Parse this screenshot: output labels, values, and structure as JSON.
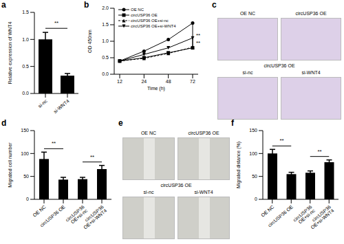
{
  "chart_data": [
    {
      "panel": "a",
      "type": "bar",
      "categories": [
        "si-nc",
        "si-WNT4"
      ],
      "values": [
        1.0,
        0.33
      ],
      "errors": [
        0.13,
        0.04
      ],
      "color": "#000000",
      "ylabel": "Relative expression of WNT4",
      "ylim": [
        0,
        1.5
      ],
      "yticks": [
        {
          "value": 0,
          "label": "0.0"
        },
        {
          "value": 0.5,
          "label": "0.5"
        },
        {
          "value": 1,
          "label": "1.0"
        },
        {
          "value": 1.5,
          "label": "1.5"
        }
      ],
      "annotations": [
        {
          "text": "**",
          "between": [
            "si-nc",
            "si-WNT4"
          ]
        }
      ]
    },
    {
      "panel": "b",
      "type": "line",
      "categories": [
        "12",
        "24",
        "48",
        "72"
      ],
      "xlabel": "Time (h)",
      "ylabel": "OD 450nm",
      "ylim": [
        0,
        2
      ],
      "yticks": [
        {
          "value": 0,
          "label": "0.0"
        },
        {
          "value": 0.5,
          "label": "0.5"
        },
        {
          "value": 1,
          "label": "1.0"
        },
        {
          "value": 1.5,
          "label": "1.5"
        },
        {
          "value": 2,
          "label": "2.0"
        }
      ],
      "legend": "upper left",
      "series": [
        {
          "name": "OE NC",
          "color": "#000000",
          "marker": "circle",
          "line_style": "solid",
          "values": [
            0.4,
            0.7,
            1.05,
            1.55
          ]
        },
        {
          "name": "circUSP36 OE",
          "color": "#000000",
          "marker": "square",
          "line_style": "solid",
          "values": [
            0.4,
            0.5,
            0.65,
            0.8
          ]
        },
        {
          "name": "circUSP36 OE+si-nc",
          "color": "#000000",
          "marker": "triangle",
          "line_style": "dashed",
          "values": [
            0.4,
            0.48,
            0.63,
            0.82
          ]
        },
        {
          "name": "circUSP36 OE+si-WNT4",
          "color": "#000000",
          "marker": "triangle-down",
          "line_style": "solid",
          "values": [
            0.4,
            0.6,
            0.8,
            1.1
          ]
        }
      ],
      "annotations": [
        {
          "text": "**",
          "between": [
            "OE NC",
            "circUSP36 OE"
          ]
        },
        {
          "text": "**",
          "between": [
            "circUSP36 OE+si-nc",
            "circUSP36 OE+si-WNT4"
          ]
        }
      ]
    },
    {
      "panel": "d",
      "type": "bar",
      "categories": [
        "OE NC",
        "circUSP36 OE",
        "circUSP36 OE+si-nc",
        "circUSP36 OE+si-WNT4"
      ],
      "values": [
        88,
        43,
        44,
        66
      ],
      "errors": [
        15,
        5,
        4,
        8
      ],
      "color": "#000000",
      "ylabel": "Migrated cell number",
      "ylim": [
        0,
        150
      ],
      "yticks": [
        0,
        50,
        100,
        150
      ],
      "annotations": [
        {
          "text": "**",
          "between": [
            "OE NC",
            "circUSP36 OE"
          ]
        },
        {
          "text": "**",
          "between": [
            "circUSP36 OE+si-nc",
            "circUSP36 OE+si-WNT4"
          ]
        }
      ]
    },
    {
      "panel": "f",
      "type": "bar",
      "categories": [
        "OE NC",
        "circUSP36 OE",
        "circUSP36 OE+si-nc",
        "circUSP36 OE+si-WNT4"
      ],
      "values": [
        100,
        55,
        58,
        81
      ],
      "errors": [
        9,
        4,
        4,
        5
      ],
      "color": "#000000",
      "ylabel": "Migrated distance (%)",
      "ylim": [
        0,
        150
      ],
      "yticks": [
        0,
        50,
        100,
        150
      ],
      "annotations": [
        {
          "text": "**",
          "between": [
            "OE NC",
            "circUSP36 OE"
          ]
        },
        {
          "text": "**",
          "between": [
            "circUSP36 OE+si-nc",
            "circUSP36 OE+si-WNT4"
          ]
        }
      ]
    }
  ],
  "image_panels": [
    {
      "panel": "c",
      "top_labels": [
        "OE NC",
        "circUSP36 OE"
      ],
      "group_label": "circUSP36 OE",
      "bottom_labels": [
        "si-nc",
        "si-WNT4"
      ]
    },
    {
      "panel": "e",
      "top_labels": [
        "OE NC",
        "circUSP36 OE"
      ],
      "group_label": "circUSP36 OE",
      "bottom_labels": [
        "si-nc",
        "si-WNT4"
      ]
    }
  ]
}
